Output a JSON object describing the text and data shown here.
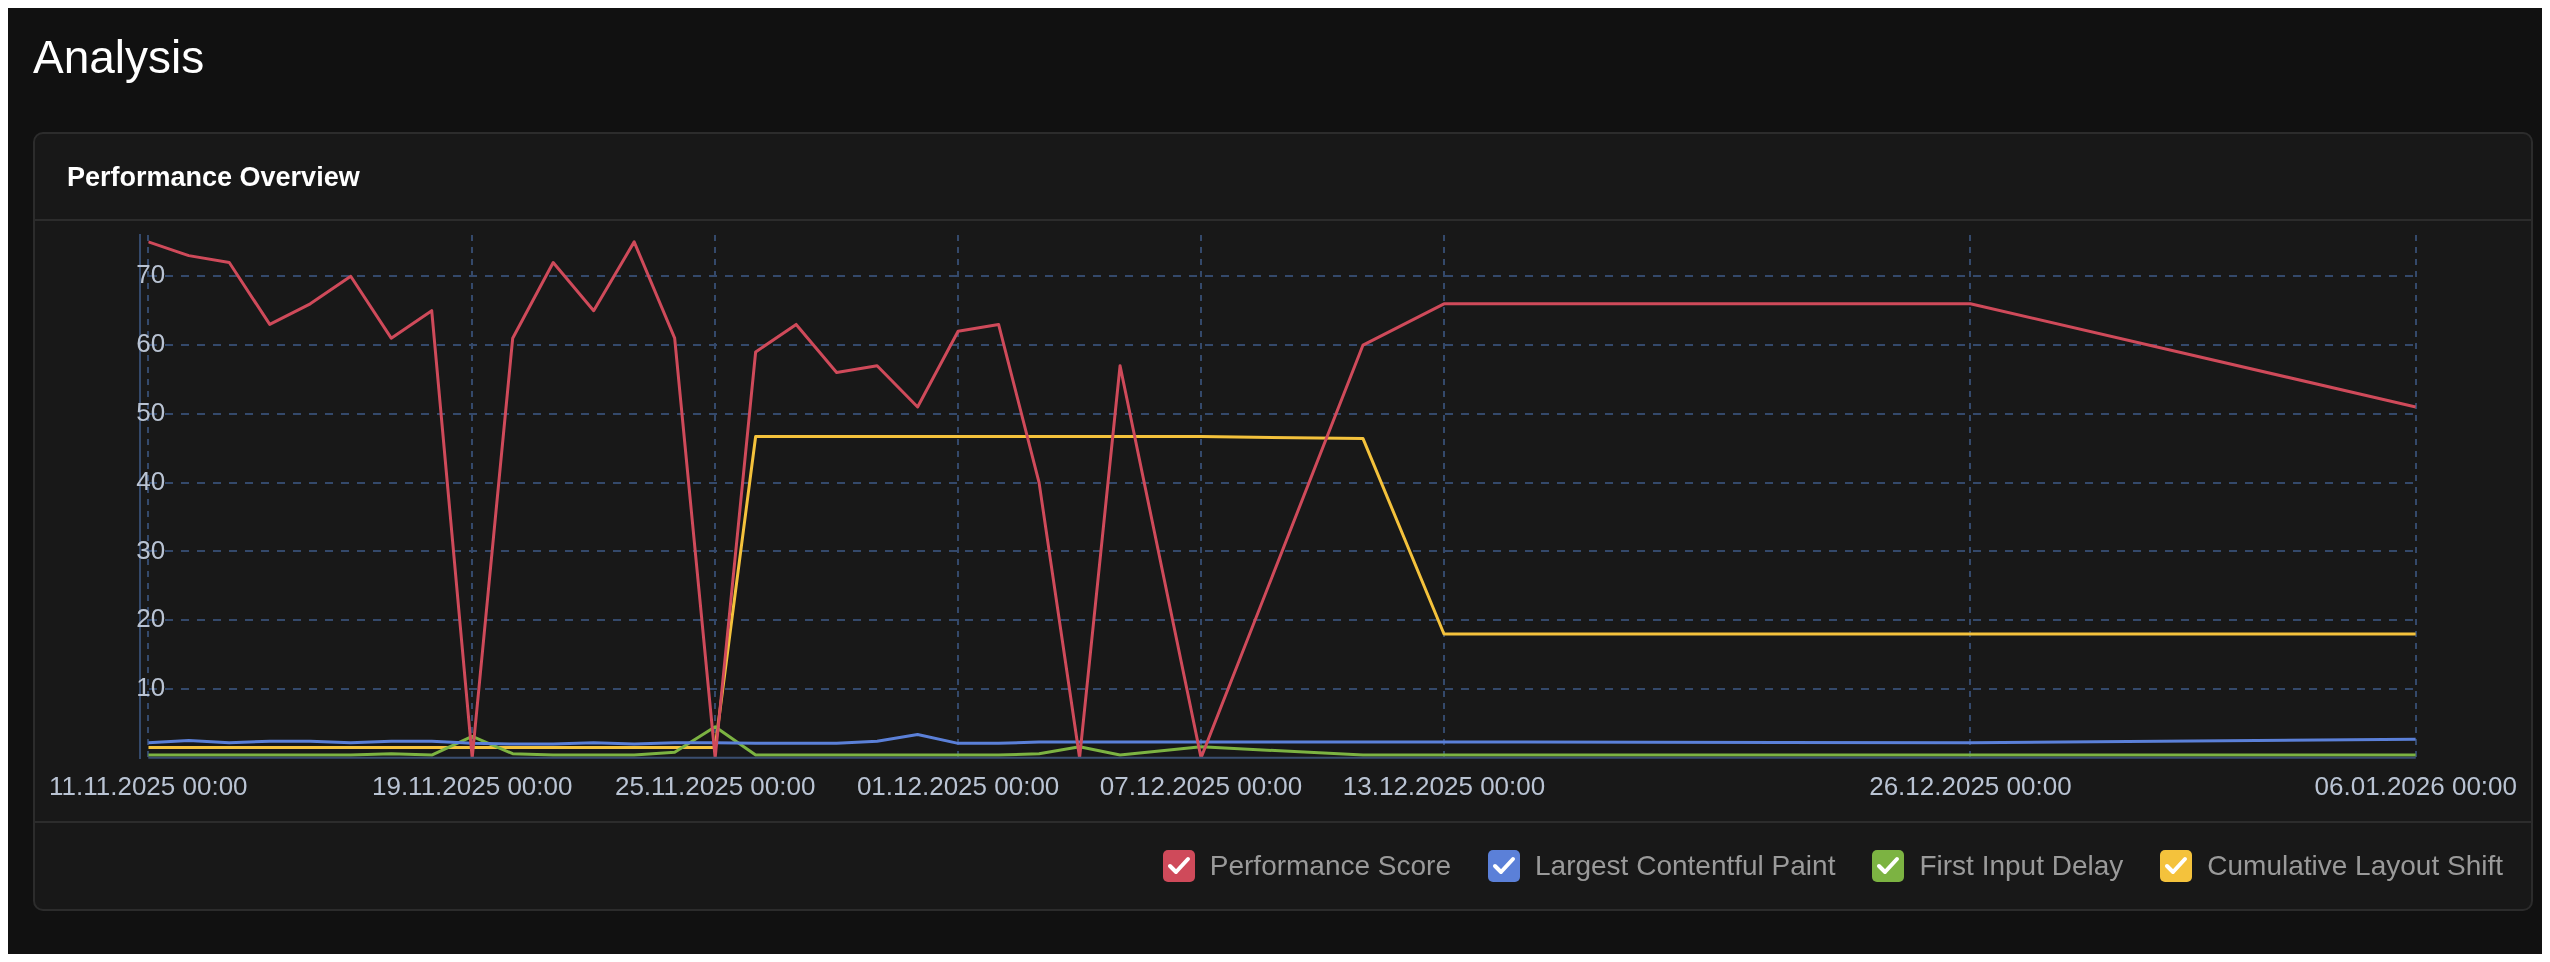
{
  "chart_data": {
    "type": "line",
    "title": "Analysis",
    "subtitle": "Performance Overview",
    "x": [
      "2025-11-11",
      "2025-11-12",
      "2025-11-13",
      "2025-11-14",
      "2025-11-15",
      "2025-11-16",
      "2025-11-17",
      "2025-11-18",
      "2025-11-19",
      "2025-11-20",
      "2025-11-21",
      "2025-11-22",
      "2025-11-23",
      "2025-11-24",
      "2025-11-25",
      "2025-11-26",
      "2025-11-27",
      "2025-11-28",
      "2025-11-29",
      "2025-11-30",
      "2025-12-01",
      "2025-12-02",
      "2025-12-03",
      "2025-12-04",
      "2025-12-05",
      "2025-12-07",
      "2025-12-11",
      "2025-12-13",
      "2025-12-26",
      "2026-01-06"
    ],
    "series": [
      {
        "name": "Performance Score",
        "color": "#cf4a5a",
        "values": [
          75,
          73,
          72,
          63,
          66,
          70,
          61,
          65,
          0,
          61,
          72,
          65,
          75,
          61,
          0,
          59,
          63,
          56,
          57,
          51,
          62,
          63,
          40,
          0,
          57,
          0,
          60,
          66,
          66,
          51
        ]
      },
      {
        "name": "Largest Contentful Paint",
        "color": "#5b80d8",
        "values": [
          2.2,
          2.5,
          2.2,
          2.4,
          2.4,
          2.2,
          2.4,
          2.4,
          2.1,
          2.0,
          2.0,
          2.2,
          2.0,
          2.2,
          2.2,
          2.1,
          2.1,
          2.1,
          2.4,
          3.4,
          2.1,
          2.1,
          2.3,
          2.3,
          2.3,
          2.3,
          2.3,
          2.3,
          2.2,
          2.7
        ]
      },
      {
        "name": "First Input Delay",
        "color": "#7cb342",
        "values": [
          0.4,
          0.4,
          0.4,
          0.4,
          0.4,
          0.4,
          0.6,
          0.4,
          3.1,
          0.6,
          0.4,
          0.4,
          0.4,
          0.8,
          4.5,
          0.4,
          0.4,
          0.4,
          0.4,
          0.4,
          0.4,
          0.4,
          0.6,
          1.6,
          0.4,
          1.6,
          0.4,
          0.4,
          0.4,
          0.4
        ]
      },
      {
        "name": "Cumulative Layout Shift",
        "color": "#f4c23c",
        "values": [
          1.5,
          1.5,
          1.5,
          1.5,
          1.5,
          1.5,
          1.5,
          1.5,
          1.5,
          1.5,
          1.5,
          1.5,
          1.5,
          1.5,
          1.5,
          46.7,
          46.7,
          46.7,
          46.7,
          46.7,
          46.7,
          46.7,
          46.7,
          46.7,
          46.7,
          46.7,
          46.4,
          18,
          18,
          18
        ]
      }
    ],
    "xlim": [
      "2025-11-11",
      "2026-01-06"
    ],
    "xticks": [
      {
        "value": "2025-11-11",
        "label": "11.11.2025 00:00"
      },
      {
        "value": "2025-11-19",
        "label": "19.11.2025 00:00"
      },
      {
        "value": "2025-11-25",
        "label": "25.11.2025 00:00"
      },
      {
        "value": "2025-12-01",
        "label": "01.12.2025 00:00"
      },
      {
        "value": "2025-12-07",
        "label": "07.12.2025 00:00"
      },
      {
        "value": "2025-12-13",
        "label": "13.12.2025 00:00"
      },
      {
        "value": "2025-12-26",
        "label": "26.12.2025 00:00"
      },
      {
        "value": "2026-01-06",
        "label": "06.01.2026 00:00"
      }
    ],
    "ylim": [
      0,
      76
    ],
    "yticks": [
      10,
      20,
      30,
      40,
      50,
      60,
      70
    ],
    "grid": true,
    "legend": "bottom right",
    "marker": "none",
    "line_style": "solid"
  }
}
